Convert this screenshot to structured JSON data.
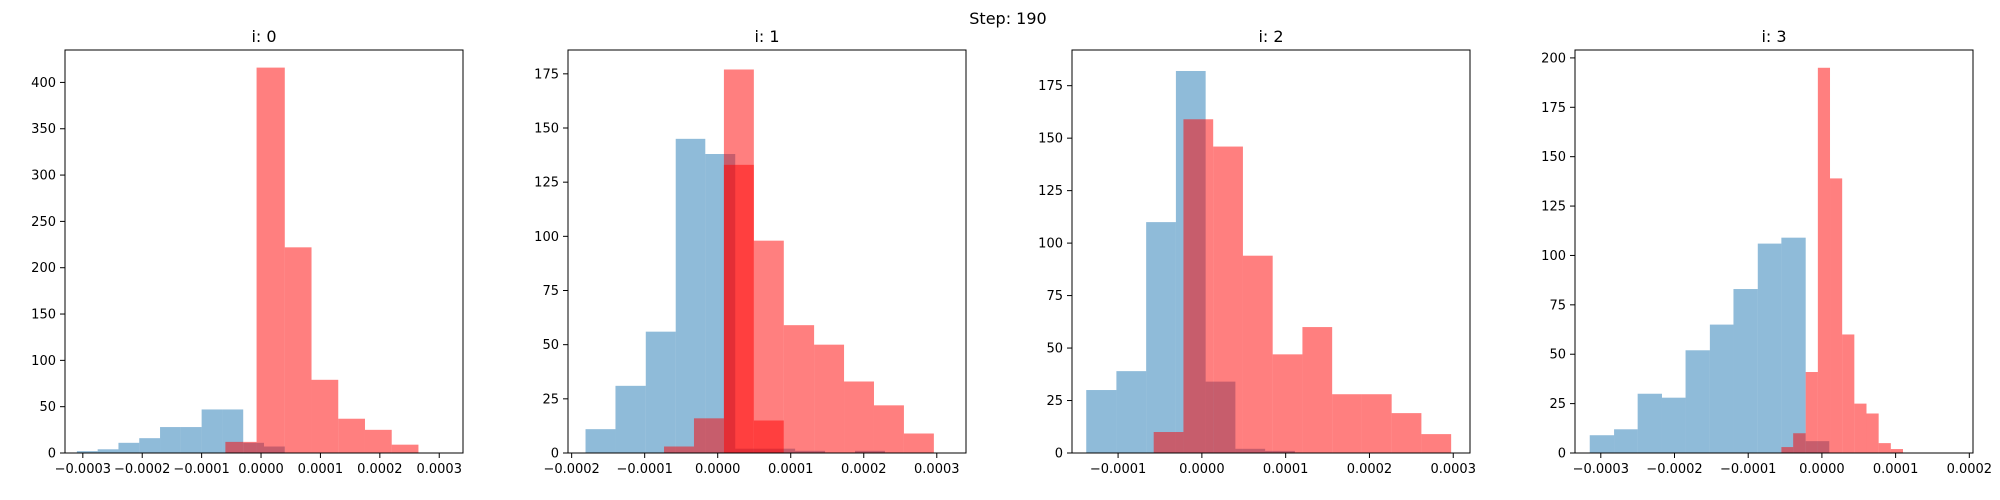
{
  "figure": {
    "suptitle": "Step: 190"
  },
  "colors": {
    "blue": "#1f77b4",
    "red": "#ff0000",
    "blue_alpha": 0.5,
    "red_alpha": 0.5
  },
  "chart_data": [
    {
      "type": "histogram",
      "title": "i: 0",
      "xlim": [
        -0.00033,
        0.00034
      ],
      "ylim": [
        0,
        435
      ],
      "xticks": [
        -0.0003,
        -0.0002,
        -0.0001,
        0.0,
        0.0001,
        0.0002,
        0.0003
      ],
      "xtick_labels": [
        "−0.0003",
        "−0.0002",
        "−0.0001",
        "0.0000",
        "0.0001",
        "0.0002",
        "0.0003"
      ],
      "yticks": [
        0,
        50,
        100,
        150,
        200,
        250,
        300,
        350,
        400
      ],
      "series": [
        {
          "color": "blue",
          "bins": [
            -0.00031,
            -0.000275,
            -0.00024,
            -0.000205,
            -0.00017,
            -0.000135,
            -0.0001,
            -6.5e-05,
            -3e-05,
            5e-06,
            4e-05
          ],
          "counts": [
            2,
            4,
            11,
            16,
            28,
            28,
            47,
            47,
            11,
            7
          ]
        },
        {
          "color": "red",
          "bins": [
            -6e-05,
            -3e-05,
            -7.5e-06,
            4e-05,
            8.5e-05,
            0.00013,
            0.000175,
            0.00022,
            0.000265,
            0.00031
          ],
          "counts": [
            12,
            12,
            416,
            222,
            79,
            37,
            25,
            9,
            0
          ]
        }
      ]
    },
    {
      "type": "histogram",
      "title": "i: 1",
      "xlim": [
        -0.000205,
        0.00034
      ],
      "ylim": [
        0,
        186
      ],
      "xticks": [
        -0.0002,
        -0.0001,
        0.0,
        0.0001,
        0.0002,
        0.0003
      ],
      "xtick_labels": [
        "−0.0002",
        "−0.0001",
        "0.0000",
        "0.0001",
        "0.0002",
        "0.0003"
      ],
      "yticks": [
        0,
        25,
        50,
        75,
        100,
        125,
        150,
        175
      ],
      "series": [
        {
          "color": "blue",
          "bins": [
            -0.000181,
            -0.00014,
            -9.85e-05,
            -5.75e-05,
            -1.7e-05,
            2.4e-05,
            6.5e-05,
            0.000106,
            0.000147,
            0.000188,
            0.000229
          ],
          "counts": [
            11,
            31,
            56,
            145,
            138,
            2,
            2,
            1,
            0,
            1
          ]
        },
        {
          "color": "red",
          "bins": [
            -7.35e-05,
            -3.25e-05,
            8.5e-06,
            4.95e-05,
            9.05e-05,
            0.000132,
            0.000173,
            0.000214,
            0.000255,
            0.000296
          ],
          "counts": [
            3,
            16,
            133,
            15,
            0,
            0,
            0,
            0,
            0
          ]
        },
        {
          "color": "red",
          "bins": [
            8.5e-06,
            4.95e-05,
            9.05e-05,
            0.000132,
            0.000173,
            0.000214,
            0.000255,
            0.000296
          ],
          "counts": [
            177,
            98,
            59,
            50,
            33,
            22,
            9
          ]
        }
      ]
    },
    {
      "type": "histogram",
      "title": "i: 2",
      "xlim": [
        -0.000155,
        0.00032
      ],
      "ylim": [
        0,
        192
      ],
      "xticks": [
        -0.0001,
        0.0,
        0.0001,
        0.0002,
        0.0003
      ],
      "xtick_labels": [
        "−0.0001",
        "0.0000",
        "0.0001",
        "0.0002",
        "0.0003"
      ],
      "yticks": [
        0,
        25,
        50,
        75,
        100,
        125,
        150,
        175
      ],
      "series": [
        {
          "color": "blue",
          "bins": [
            -0.000138,
            -0.000102,
            -6.65e-05,
            -3.1e-05,
            4.5e-06,
            4e-05,
            7.55e-05,
            0.000111,
            0.0001465,
            0.000182
          ],
          "counts": [
            30,
            39,
            110,
            182,
            34,
            2,
            1,
            0,
            0
          ]
        },
        {
          "color": "red",
          "bins": [
            -5.75e-05,
            -2.2e-05,
            1.35e-05,
            4.9e-05,
            8.45e-05,
            0.00012,
            0.0001555,
            0.000191,
            0.0002265,
            0.000262,
            0.0002975
          ],
          "counts": [
            10,
            159,
            146,
            94,
            47,
            60,
            28,
            28,
            19,
            9
          ]
        }
      ]
    },
    {
      "type": "histogram",
      "title": "i: 3",
      "xlim": [
        -0.000335,
        0.000205
      ],
      "ylim": [
        0,
        204
      ],
      "xticks": [
        -0.0003,
        -0.0002,
        -0.0001,
        0.0,
        0.0001,
        0.0002
      ],
      "xtick_labels": [
        "−0.0003",
        "−0.0002",
        "−0.0001",
        "0.0000",
        "0.0001",
        "0.0002"
      ],
      "yticks": [
        0,
        25,
        50,
        75,
        100,
        125,
        150,
        175,
        200
      ],
      "series": [
        {
          "color": "blue",
          "bins": [
            -0.000315,
            -0.000282,
            -0.00025,
            -0.000217,
            -0.000185,
            -0.000152,
            -0.00012,
            -8.7e-05,
            -5.5e-05,
            -2.2e-05,
            1e-05
          ],
          "counts": [
            9,
            12,
            30,
            28,
            52,
            65,
            83,
            106,
            109,
            6
          ]
        },
        {
          "color": "red",
          "bins": [
            -5.5e-05,
            -3.9e-05,
            -2.2e-05,
            -5.5e-06,
            1.1e-05,
            2.75e-05,
            4.4e-05,
            6.05e-05,
            7.7e-05,
            9.35e-05,
            0.00011,
            0.0001265,
            0.000143,
            0.0001595,
            0.000176
          ],
          "counts": [
            3,
            10,
            41,
            195,
            139,
            60,
            25,
            20,
            5,
            2,
            0,
            0,
            0,
            0
          ]
        }
      ]
    }
  ]
}
